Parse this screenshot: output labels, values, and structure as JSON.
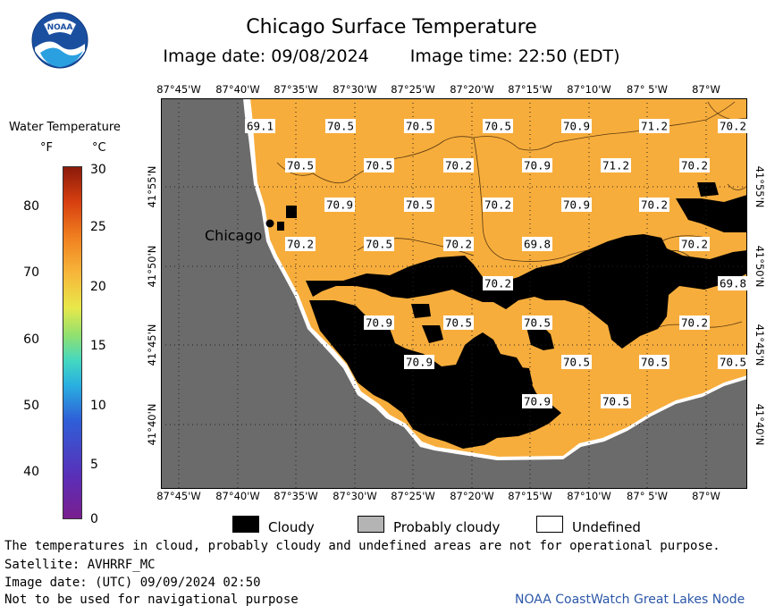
{
  "title": "Chicago Surface Temperature",
  "image_date": "Image date: 09/08/2024",
  "image_time": "Image time: 22:50 (EDT)",
  "logo_text": "NOAA",
  "legend": {
    "title": "Water Temperature",
    "unit_f": "°F",
    "unit_c": "°C",
    "ticks_f": [
      "80",
      "70",
      "60",
      "50",
      "40"
    ],
    "ticks_c": [
      "30",
      "25",
      "20",
      "15",
      "10",
      "5",
      "0"
    ]
  },
  "lon_labels": [
    "87°45'W",
    "87°40'W",
    "87°35'W",
    "87°30'W",
    "87°25'W",
    "87°20'W",
    "87°15'W",
    "87°10'W",
    "87° 5'W",
    "87°W"
  ],
  "lat_labels": [
    "41°55'N",
    "41°50'N",
    "41°45'N",
    "41°40'N"
  ],
  "city_label": "Chicago",
  "temperatures": [
    {
      "value": "69.1"
    },
    {
      "value": "70.5"
    },
    {
      "value": "70.5"
    },
    {
      "value": "70.5"
    },
    {
      "value": "70.9"
    },
    {
      "value": "71.2"
    },
    {
      "value": "70.2"
    },
    {
      "value": "70.5"
    },
    {
      "value": "70.5"
    },
    {
      "value": "70.2"
    },
    {
      "value": "70.9"
    },
    {
      "value": "71.2"
    },
    {
      "value": "70.2"
    },
    {
      "value": "70.9"
    },
    {
      "value": "70.5"
    },
    {
      "value": "70.2"
    },
    {
      "value": "70.9"
    },
    {
      "value": "70.2"
    },
    {
      "value": "70.2"
    },
    {
      "value": "70.5"
    },
    {
      "value": "70.2"
    },
    {
      "value": "69.8"
    },
    {
      "value": "70.2"
    },
    {
      "value": "70.2"
    },
    {
      "value": "69.8"
    },
    {
      "value": "70.9"
    },
    {
      "value": "70.5"
    },
    {
      "value": "70.5"
    },
    {
      "value": "70.2"
    },
    {
      "value": "70.9"
    },
    {
      "value": "70.5"
    },
    {
      "value": "70.5"
    },
    {
      "value": "70.5"
    },
    {
      "value": "70.9"
    },
    {
      "value": "70.5"
    }
  ],
  "key": {
    "cloudy": "Cloudy",
    "probably_cloudy": "Probably cloudy",
    "undefined": "Undefined"
  },
  "notes": {
    "disclaimer": "The temperatures in cloud, probably cloudy and undefined areas are not for operational purpose.",
    "satellite": "Satellite: AVHRRF_MC",
    "utc_date": "Image date: (UTC) 09/09/2024  02:50",
    "navigation": "Not to be used for navigational purpose"
  },
  "credit": "NOAA CoastWatch Great Lakes Node",
  "colors": {
    "water": "#f7ad3c",
    "land": "#6b6b6b",
    "cloud": "#000000",
    "probably_cloudy": "#b4b4b4",
    "undefined": "#ffffff",
    "credit": "#2c57a8"
  }
}
